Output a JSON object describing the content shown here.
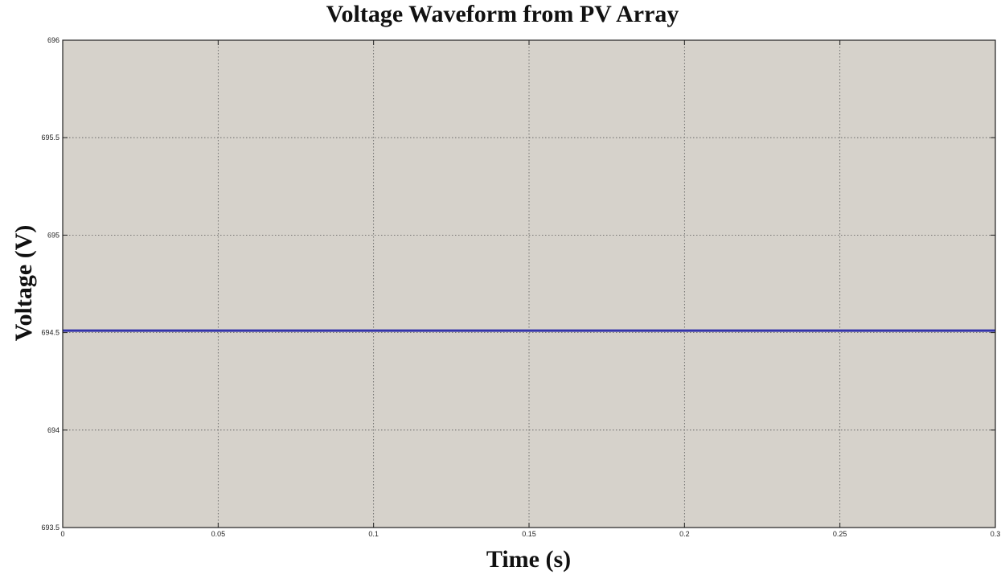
{
  "chart_data": {
    "type": "line",
    "title": "Voltage Waveform from PV Array",
    "xlabel": "Time (s)",
    "ylabel": "Voltage (V)",
    "xlim": [
      0,
      0.3
    ],
    "ylim": [
      693.5,
      696
    ],
    "xticks": [
      {
        "value": 0,
        "label": "0"
      },
      {
        "value": 0.05,
        "label": "0.05"
      },
      {
        "value": 0.1,
        "label": "0.1"
      },
      {
        "value": 0.15,
        "label": "0.15"
      },
      {
        "value": 0.2,
        "label": "0.2"
      },
      {
        "value": 0.25,
        "label": "0.25"
      },
      {
        "value": 0.3,
        "label": "0.3"
      }
    ],
    "yticks": [
      {
        "value": 693.5,
        "label": "693.5"
      },
      {
        "value": 694,
        "label": "694"
      },
      {
        "value": 694.5,
        "label": "694.5"
      },
      {
        "value": 695,
        "label": "695"
      },
      {
        "value": 695.5,
        "label": "695.5"
      },
      {
        "value": 696,
        "label": "696"
      }
    ],
    "grid": true,
    "plot_background": "#d6d2cb",
    "series": [
      {
        "color": "#3333aa",
        "x": [
          0,
          0.3
        ],
        "y": [
          694.51,
          694.51
        ]
      }
    ]
  }
}
